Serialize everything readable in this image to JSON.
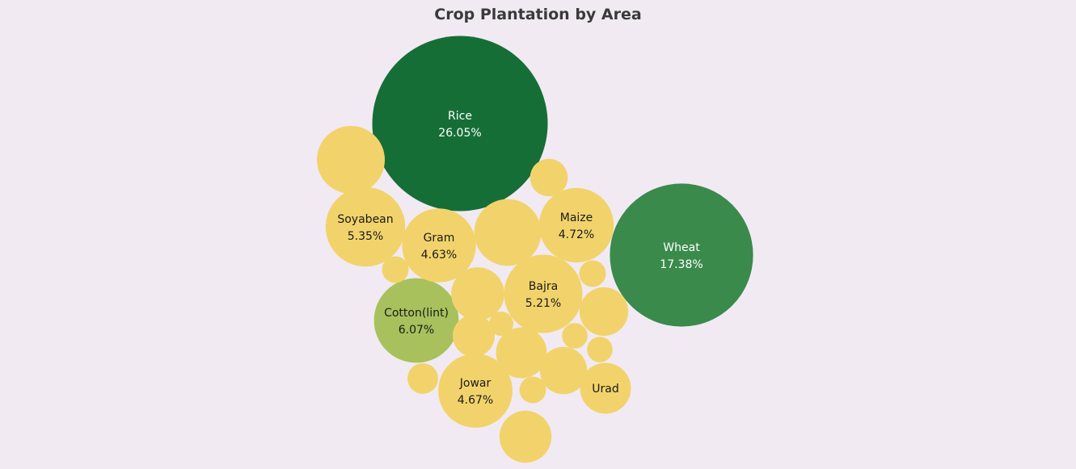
{
  "chart_data": {
    "type": "bubble",
    "title": "Crop Plantation by Area",
    "value_format": "percent",
    "colors": {
      "dark_green": "#166e37",
      "mid_green": "#3a8a4b",
      "light_green": "#a8c15c",
      "yellow": "#f2d36b"
    },
    "items": [
      {
        "label": "Rice",
        "value": 26.05,
        "display": "26.05%",
        "color": "#166e37",
        "text_color": "#ffffff"
      },
      {
        "label": "Wheat",
        "value": 17.38,
        "display": "17.38%",
        "color": "#3a8a4b",
        "text_color": "#ffffff"
      },
      {
        "label": "Cotton(lint)",
        "value": 6.07,
        "display": "6.07%",
        "color": "#a8c15c",
        "text_color": "#1a1a1a"
      },
      {
        "label": "Soyabean",
        "value": 5.35,
        "display": "5.35%",
        "color": "#f2d36b",
        "text_color": "#1a1a1a"
      },
      {
        "label": "Bajra",
        "value": 5.21,
        "display": "5.21%",
        "color": "#f2d36b",
        "text_color": "#1a1a1a"
      },
      {
        "label": "Maize",
        "value": 4.72,
        "display": "4.72%",
        "color": "#f2d36b",
        "text_color": "#1a1a1a"
      },
      {
        "label": "Jowar",
        "value": 4.67,
        "display": "4.67%",
        "color": "#f2d36b",
        "text_color": "#1a1a1a"
      },
      {
        "label": "Gram",
        "value": 4.63,
        "display": "4.63%",
        "color": "#f2d36b",
        "text_color": "#1a1a1a"
      },
      {
        "label": "Urad",
        "value": 2.2,
        "display": "",
        "color": "#f2d36b",
        "text_color": "#1a1a1a"
      },
      {
        "label": "",
        "value": 3.9,
        "display": "",
        "color": "#f2d36b",
        "text_color": "#1a1a1a"
      },
      {
        "label": "",
        "value": 3.8,
        "display": "",
        "color": "#f2d36b",
        "text_color": "#1a1a1a"
      },
      {
        "label": "",
        "value": 2.4,
        "display": "",
        "color": "#f2d36b",
        "text_color": "#1a1a1a"
      },
      {
        "label": "",
        "value": 2.3,
        "display": "",
        "color": "#f2d36b",
        "text_color": "#1a1a1a"
      },
      {
        "label": "",
        "value": 2.2,
        "display": "",
        "color": "#f2d36b",
        "text_color": "#1a1a1a"
      },
      {
        "label": "",
        "value": 2.0,
        "display": "",
        "color": "#f2d36b",
        "text_color": "#1a1a1a"
      },
      {
        "label": "",
        "value": 1.9,
        "display": "",
        "color": "#f2d36b",
        "text_color": "#1a1a1a"
      },
      {
        "label": "",
        "value": 1.5,
        "display": "",
        "color": "#f2d36b",
        "text_color": "#1a1a1a"
      },
      {
        "label": "",
        "value": 1.2,
        "display": "",
        "color": "#f2d36b",
        "text_color": "#1a1a1a"
      },
      {
        "label": "",
        "value": 0.8,
        "display": "",
        "color": "#f2d36b",
        "text_color": "#1a1a1a"
      },
      {
        "label": "",
        "value": 0.6,
        "display": "",
        "color": "#f2d36b",
        "text_color": "#1a1a1a"
      },
      {
        "label": "",
        "value": 0.6,
        "display": "",
        "color": "#f2d36b",
        "text_color": "#1a1a1a"
      },
      {
        "label": "",
        "value": 0.6,
        "display": "",
        "color": "#f2d36b",
        "text_color": "#1a1a1a"
      },
      {
        "label": "",
        "value": 0.55,
        "display": "",
        "color": "#f2d36b",
        "text_color": "#1a1a1a"
      },
      {
        "label": "",
        "value": 0.55,
        "display": "",
        "color": "#f2d36b",
        "text_color": "#1a1a1a"
      },
      {
        "label": "",
        "value": 0.5,
        "display": "",
        "color": "#f2d36b",
        "text_color": "#1a1a1a"
      },
      {
        "label": "",
        "value": 0.4,
        "display": "",
        "color": "#f2d36b",
        "text_color": "#1a1a1a"
      }
    ]
  }
}
